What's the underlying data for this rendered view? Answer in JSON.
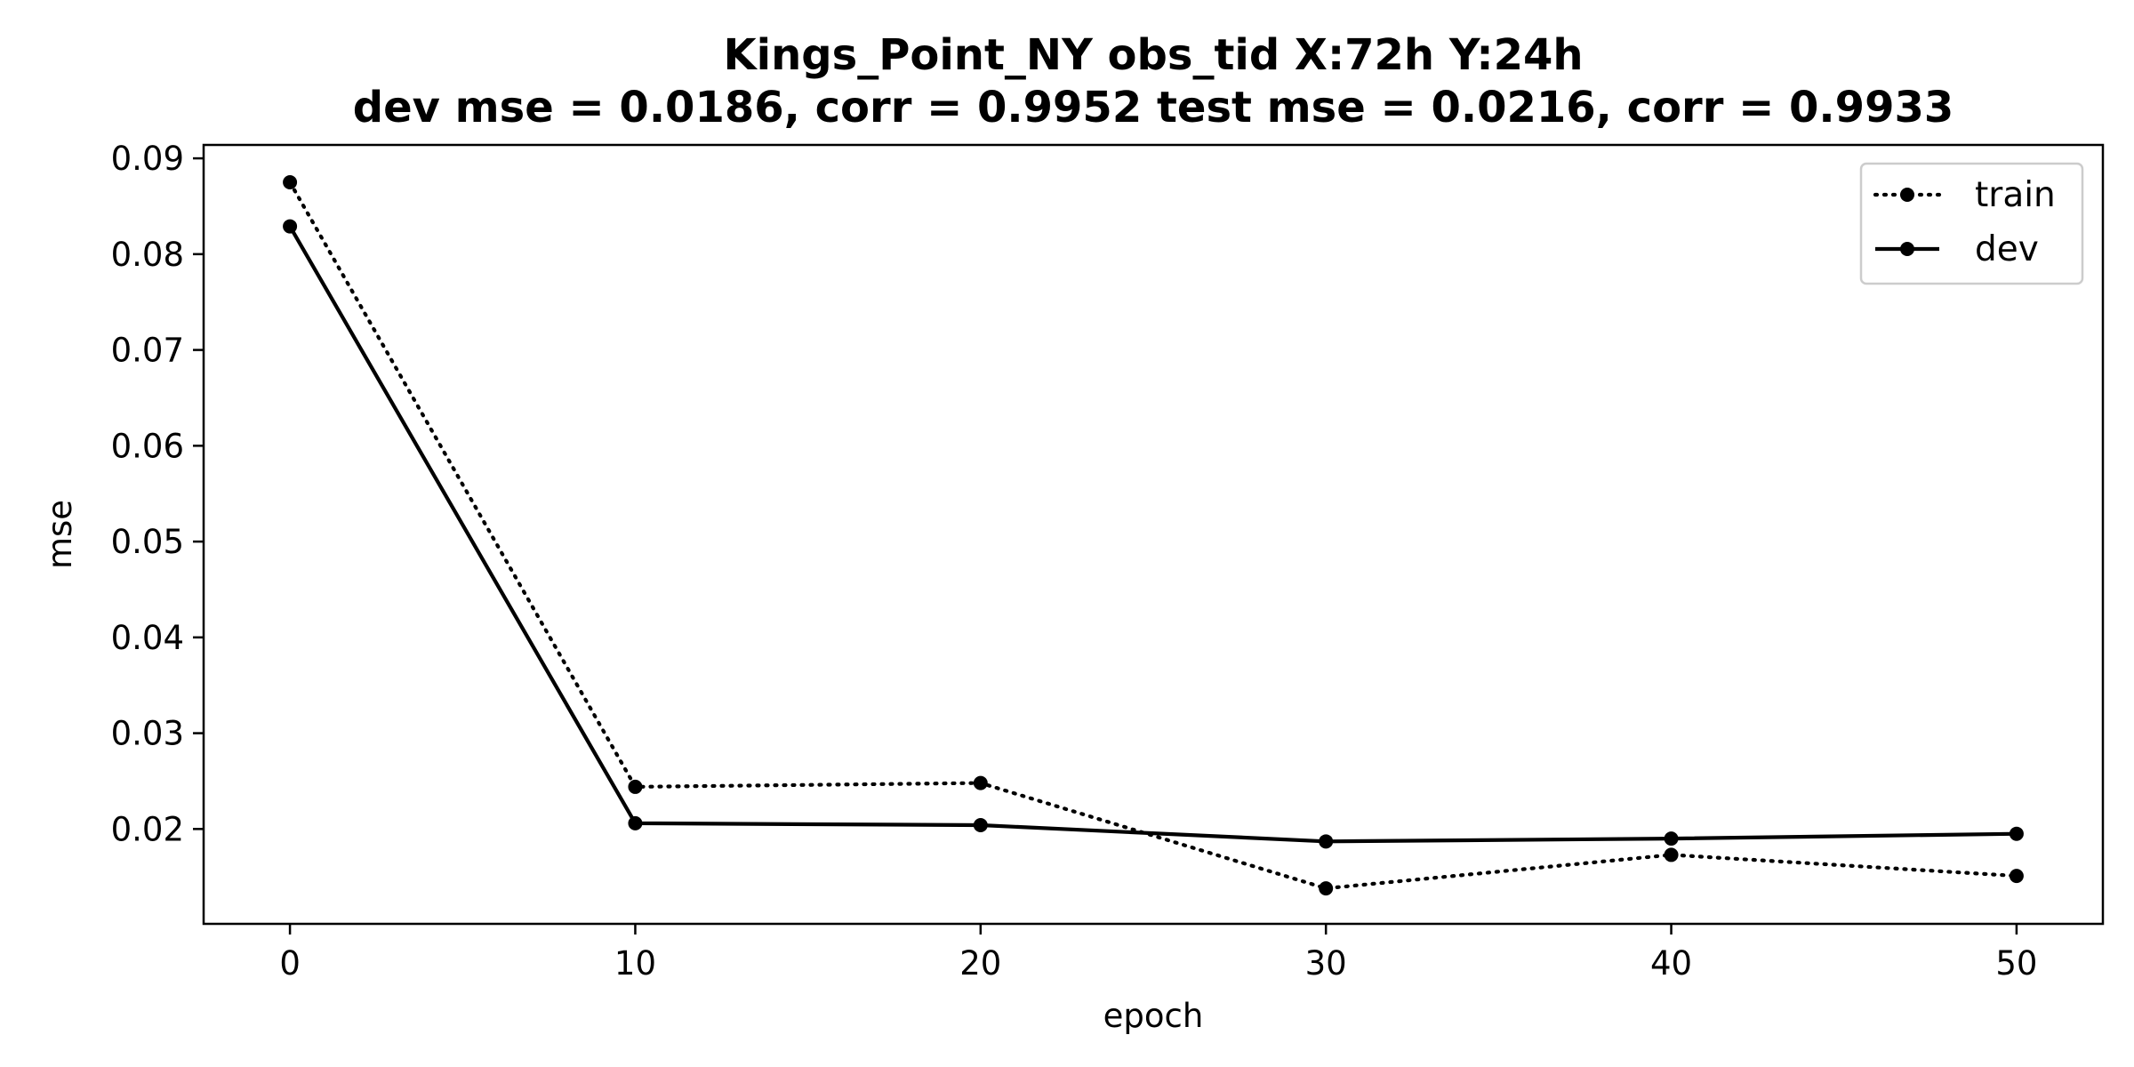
{
  "chart_data": {
    "type": "line",
    "title": "Kings_Point_NY   obs_tid   X:72h   Y:24h",
    "subtitle": "dev mse = 0.0186, corr = 0.9952   test mse = 0.0216, corr = 0.9933",
    "xlabel": "epoch",
    "ylabel": "mse",
    "xlim": [
      -2.5,
      52.5
    ],
    "ylim": [
      0.0101,
      0.0914
    ],
    "xticks": [
      0,
      10,
      20,
      30,
      40,
      50
    ],
    "yticks": [
      0.02,
      0.03,
      0.04,
      0.05,
      0.06,
      0.07,
      0.08,
      0.09
    ],
    "ytick_labels": [
      "0.02",
      "0.03",
      "0.04",
      "0.05",
      "0.06",
      "0.07",
      "0.08",
      "0.09"
    ],
    "xtick_labels": [
      "0",
      "10",
      "20",
      "30",
      "40",
      "50"
    ],
    "grid": false,
    "legend_position": "top-right",
    "x": [
      0,
      10,
      20,
      30,
      40,
      50
    ],
    "series": [
      {
        "name": "train",
        "linestyle": "dotted",
        "color": "#000000",
        "values": [
          0.0875,
          0.0244,
          0.0248,
          0.0138,
          0.0173,
          0.0151
        ]
      },
      {
        "name": "dev",
        "linestyle": "solid",
        "color": "#000000",
        "values": [
          0.0829,
          0.0206,
          0.0204,
          0.0187,
          0.019,
          0.0195
        ]
      }
    ]
  }
}
